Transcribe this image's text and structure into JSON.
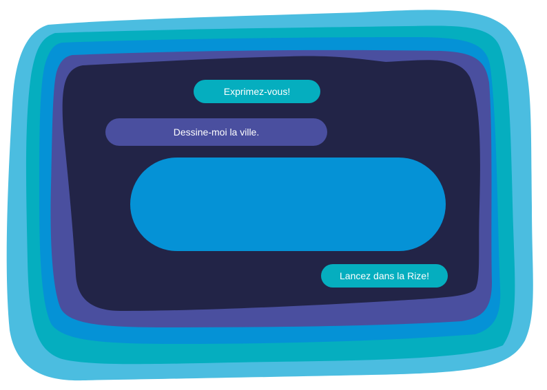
{
  "header": {
    "title": "Exprimez-vous!"
  },
  "prompt": {
    "text": "Dessine-moi la ville."
  },
  "input": {
    "value": "",
    "placeholder": ""
  },
  "actions": {
    "submit_label": "Lancez dans la Rize!"
  },
  "colors": {
    "outer_frame": "#4bbde0",
    "teal_frame": "#05aebf",
    "blue_frame": "#0592d6",
    "purple_frame": "#4a4f9f",
    "panel": "#222447",
    "title_pill": "#05aebf",
    "prompt_pill": "#4a4f9f",
    "input_area": "#0592d6",
    "submit_button": "#05aebf",
    "text": "#ffffff"
  }
}
